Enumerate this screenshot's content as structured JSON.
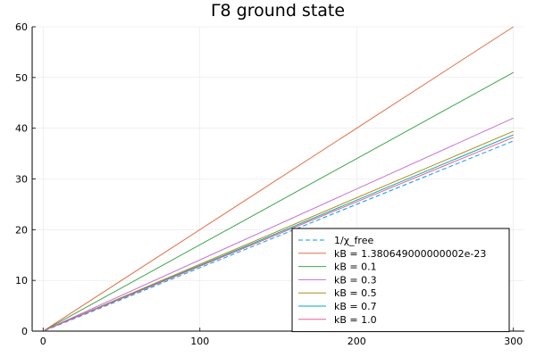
{
  "chart_data": {
    "type": "line",
    "title": "Γ8 ground state",
    "xlabel": "",
    "ylabel": "",
    "xlim": [
      -7,
      307
    ],
    "ylim": [
      0,
      60
    ],
    "xticks": [
      0,
      100,
      200,
      300
    ],
    "yticks": [
      0,
      10,
      20,
      30,
      40,
      50,
      60
    ],
    "grid": true,
    "legend_position": "bottom-right",
    "series": [
      {
        "name": "1/χ_free",
        "color": "#009AFA",
        "dash": "dashed",
        "x": [
          1,
          300
        ],
        "y": [
          0.1,
          37.5
        ]
      },
      {
        "name": "kB = 1.380649000000002e-23",
        "color": "#E26F46",
        "dash": "solid",
        "x": [
          1,
          300
        ],
        "y": [
          0.2,
          60.0
        ]
      },
      {
        "name": "kB = 0.1",
        "color": "#3DA44D",
        "dash": "solid",
        "x": [
          1,
          300
        ],
        "y": [
          0.2,
          51.0
        ]
      },
      {
        "name": "kB = 0.3",
        "color": "#C271D2",
        "dash": "solid",
        "x": [
          1,
          300
        ],
        "y": [
          0.2,
          42.0
        ]
      },
      {
        "name": "kB = 0.5",
        "color": "#AC8E18",
        "dash": "solid",
        "x": [
          1,
          300
        ],
        "y": [
          0.2,
          39.4
        ]
      },
      {
        "name": "kB = 0.7",
        "color": "#00A9AD",
        "dash": "solid",
        "x": [
          1,
          300
        ],
        "y": [
          0.2,
          38.7
        ]
      },
      {
        "name": "kB = 1.0",
        "color": "#ED5D92",
        "dash": "solid",
        "x": [
          1,
          300
        ],
        "y": [
          0.2,
          38.2
        ]
      }
    ]
  }
}
